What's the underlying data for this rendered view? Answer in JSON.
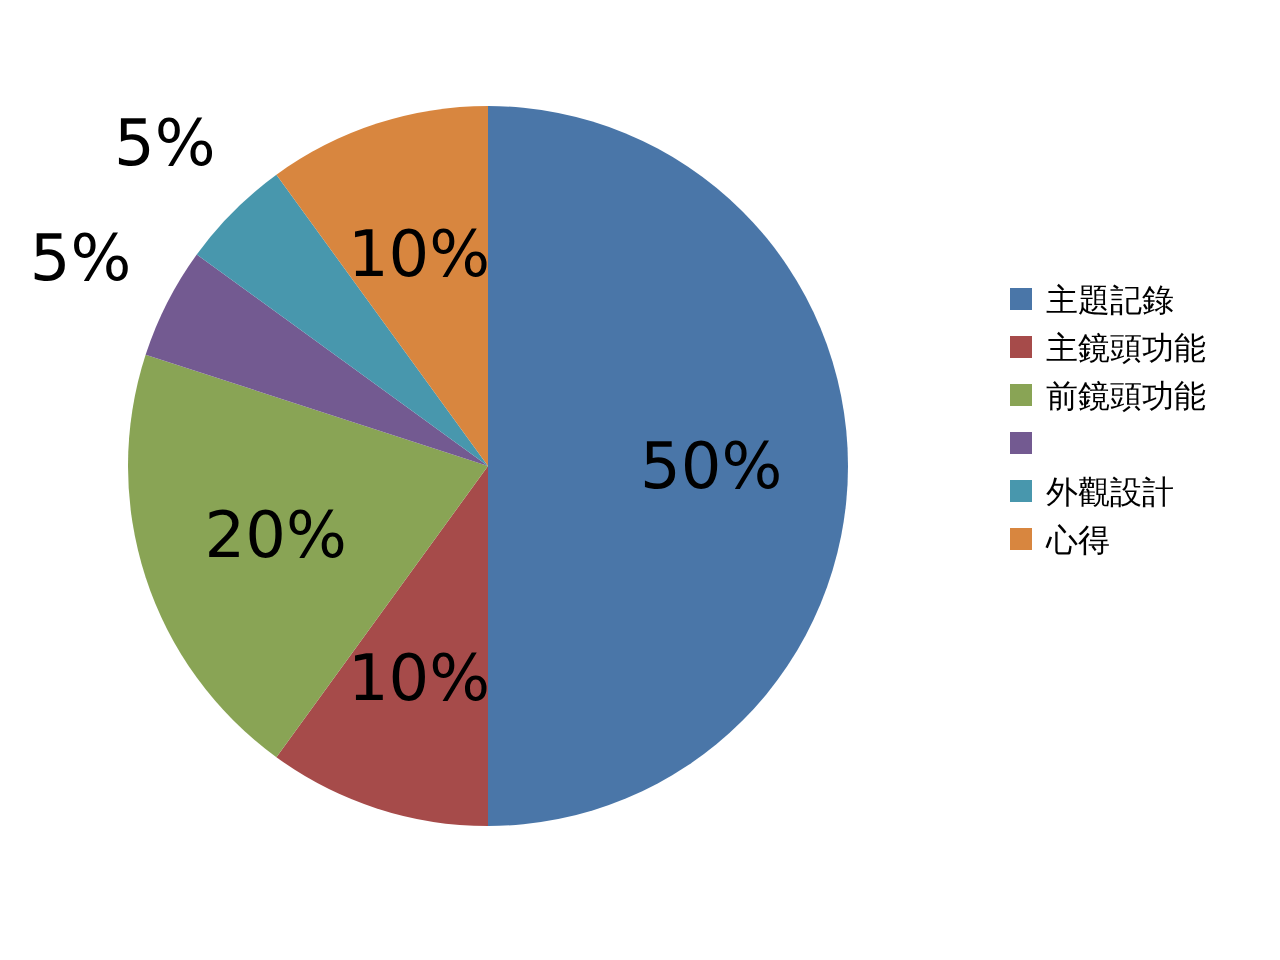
{
  "chart_data": {
    "type": "pie",
    "categories": [
      "主題記錄",
      "主鏡頭功能",
      "前鏡頭功能",
      null,
      "外觀設計",
      "心得"
    ],
    "values": [
      50,
      10,
      20,
      5,
      5,
      10
    ],
    "value_labels": [
      "50%",
      "10%",
      "20%",
      "5%",
      "5%",
      "10%"
    ],
    "colors": [
      "#4a76a8",
      "#a64b4a",
      "#89a455",
      "#735a91",
      "#4897ad",
      "#d8863f"
    ],
    "legend": "right"
  }
}
